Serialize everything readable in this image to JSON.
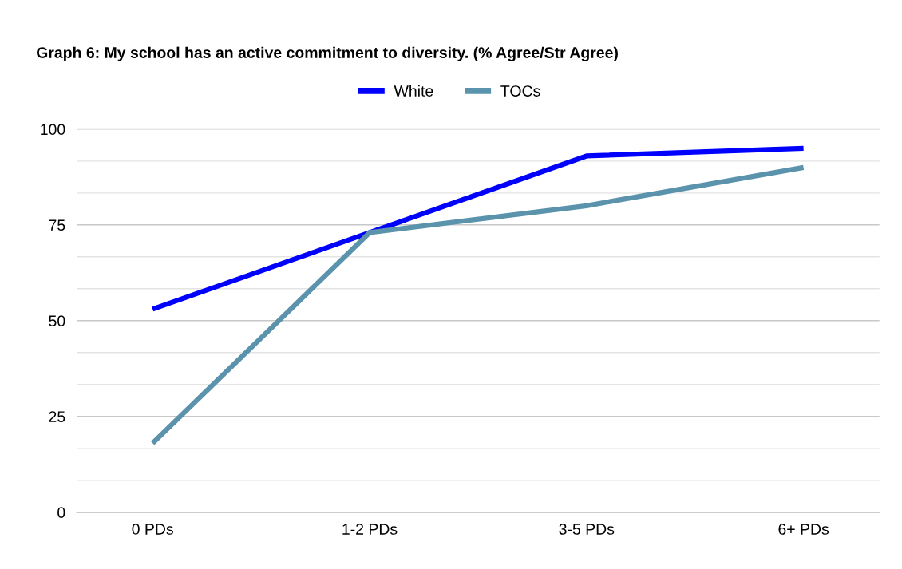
{
  "chart_data": {
    "type": "line",
    "title": "Graph 6: My school has an active commitment to diversity. (% Agree/Str Agree)",
    "categories": [
      "0 PDs",
      "1-2 PDs",
      "3-5 PDs",
      "6+ PDs"
    ],
    "series": [
      {
        "name": "White",
        "color": "#0000ff",
        "values": [
          53,
          73,
          93,
          95
        ]
      },
      {
        "name": "TOCs",
        "color": "#5b93ad",
        "values": [
          18,
          73,
          80,
          90
        ]
      }
    ],
    "ylim": [
      0,
      100
    ],
    "yticks": [
      0,
      {
        "value": 8.33,
        "label": null
      },
      {
        "value": 16.67,
        "label": null
      },
      25,
      {
        "value": 33.33,
        "label": null
      },
      {
        "value": 41.67,
        "label": null
      },
      50,
      {
        "value": 58.33,
        "label": null
      },
      {
        "value": 66.67,
        "label": null
      },
      75,
      {
        "value": 83.33,
        "label": null
      },
      {
        "value": 91.67,
        "label": null
      },
      100
    ],
    "grid": "y",
    "legend": "top",
    "marker": "none",
    "line_style": "solid"
  }
}
